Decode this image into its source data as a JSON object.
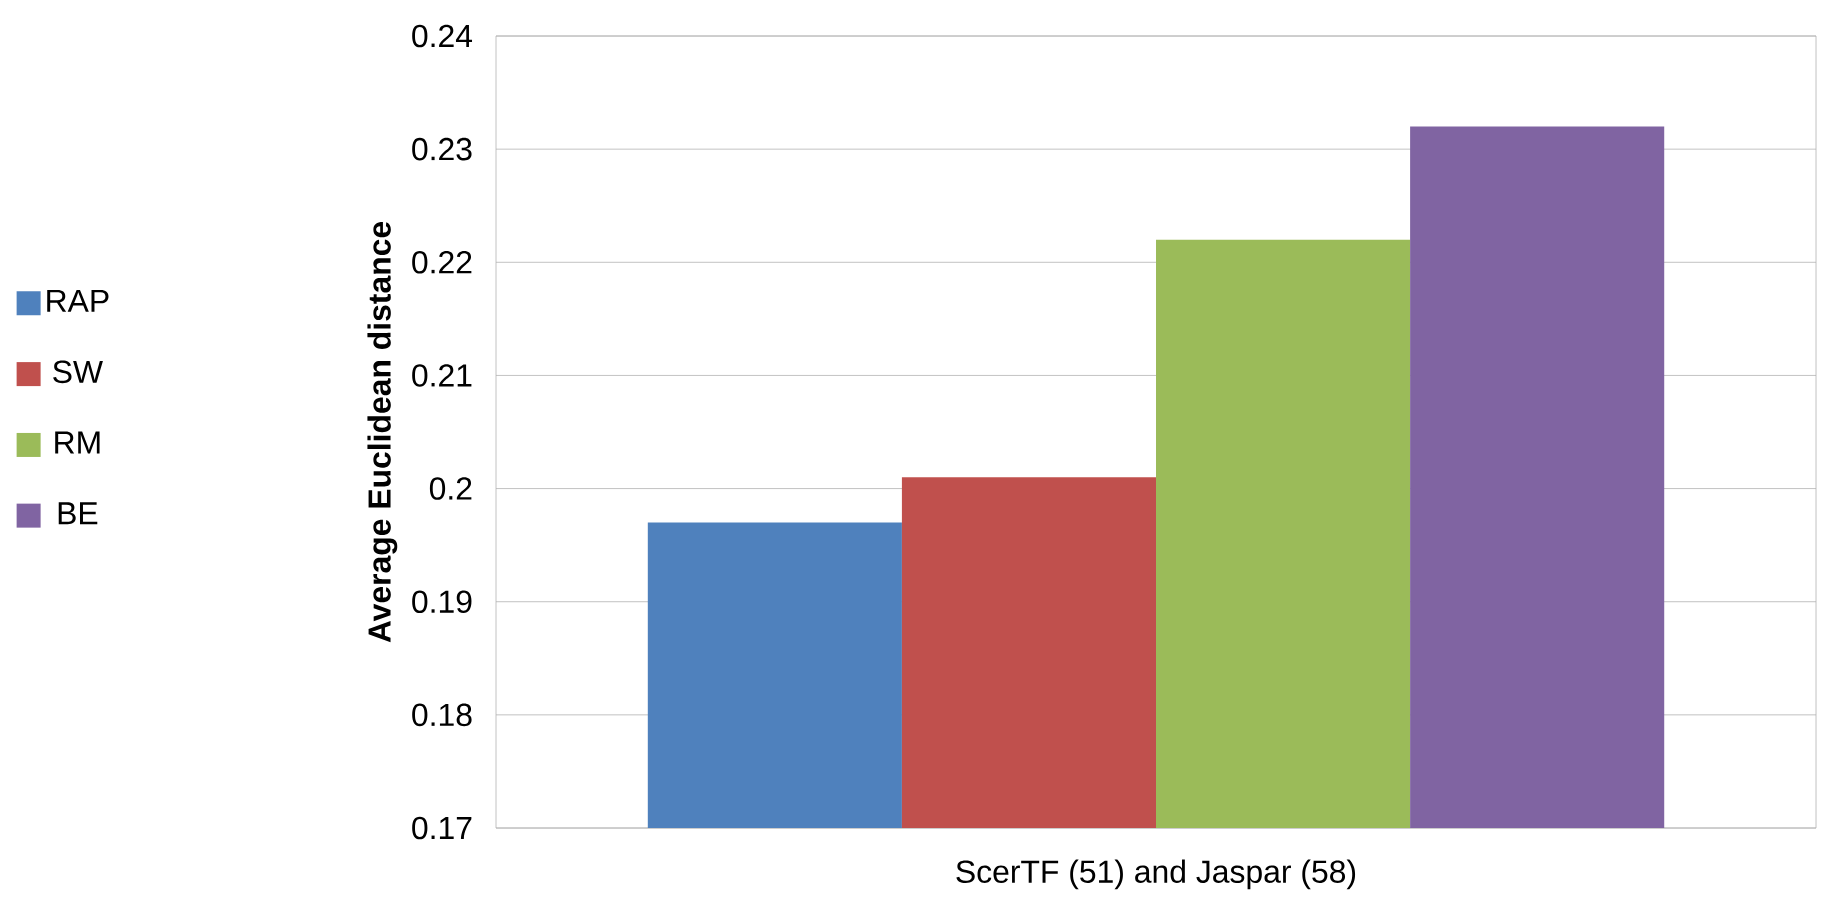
{
  "chart_data": {
    "type": "bar",
    "ylabel": "Average Euclidean  distance",
    "categories": [
      "ScerTF (51) and Jaspar (58)"
    ],
    "series": [
      {
        "name": "RAP",
        "color": "#4f81bd",
        "values": [
          0.197
        ]
      },
      {
        "name": "SW",
        "color": "#c0504d",
        "values": [
          0.201
        ]
      },
      {
        "name": "RM",
        "color": "#9bbb59",
        "values": [
          0.222
        ]
      },
      {
        "name": "BE",
        "color": "#8064a2",
        "values": [
          0.232
        ]
      }
    ],
    "ylim": [
      0.17,
      0.24
    ],
    "yticks": [
      0.17,
      0.18,
      0.19,
      0.2,
      0.21,
      0.22,
      0.23,
      0.24
    ],
    "grid": "y",
    "legend": "left"
  }
}
